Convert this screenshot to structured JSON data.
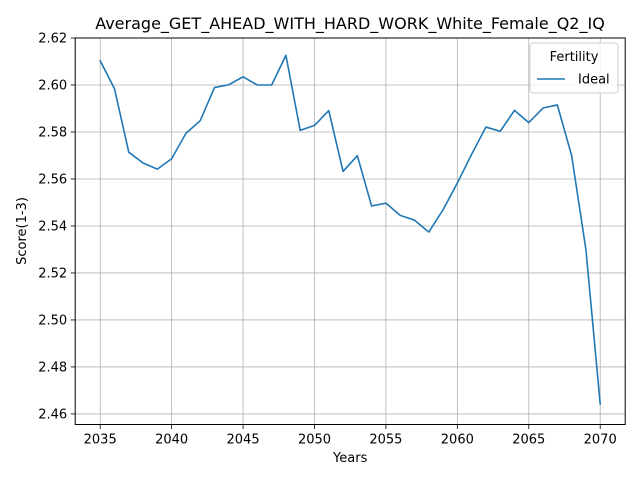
{
  "chart_data": {
    "type": "line",
    "title": "Average_GET_AHEAD_WITH_HARD_WORK_White_Female_Q2_IQ",
    "xlabel": "Years",
    "ylabel": "Score(1-3)",
    "xlim": [
      2033.25,
      2071.75
    ],
    "ylim": [
      2.4555,
      2.62
    ],
    "x_ticks": [
      2035,
      2040,
      2045,
      2050,
      2055,
      2060,
      2065,
      2070
    ],
    "y_ticks": [
      2.46,
      2.48,
      2.5,
      2.52,
      2.54,
      2.56,
      2.58,
      2.6,
      2.62
    ],
    "grid": true,
    "legend": {
      "title": "Fertility",
      "placement": "top-right"
    },
    "series": [
      {
        "name": "Ideal",
        "color": "#1f77b4",
        "x": [
          2035,
          2036,
          2037,
          2038,
          2039,
          2040,
          2041,
          2042,
          2043,
          2044,
          2045,
          2046,
          2047,
          2048,
          2049,
          2050,
          2051,
          2052,
          2053,
          2054,
          2055,
          2056,
          2057,
          2058,
          2059,
          2060,
          2061,
          2062,
          2063,
          2064,
          2065,
          2066,
          2067,
          2068,
          2069,
          2070
        ],
        "y": [
          2.6103,
          2.5984,
          2.5714,
          2.5668,
          2.5642,
          2.5686,
          2.5794,
          2.5848,
          2.5989,
          2.6001,
          2.6035,
          2.6,
          2.6,
          2.6126,
          2.5807,
          2.5828,
          2.5891,
          2.5632,
          2.5699,
          2.5485,
          2.5497,
          2.5445,
          2.5425,
          2.5374,
          2.5469,
          2.5583,
          2.5705,
          2.5821,
          2.5803,
          2.5892,
          2.584,
          2.5902,
          2.5915,
          2.57,
          2.53,
          2.4642
        ]
      }
    ]
  }
}
